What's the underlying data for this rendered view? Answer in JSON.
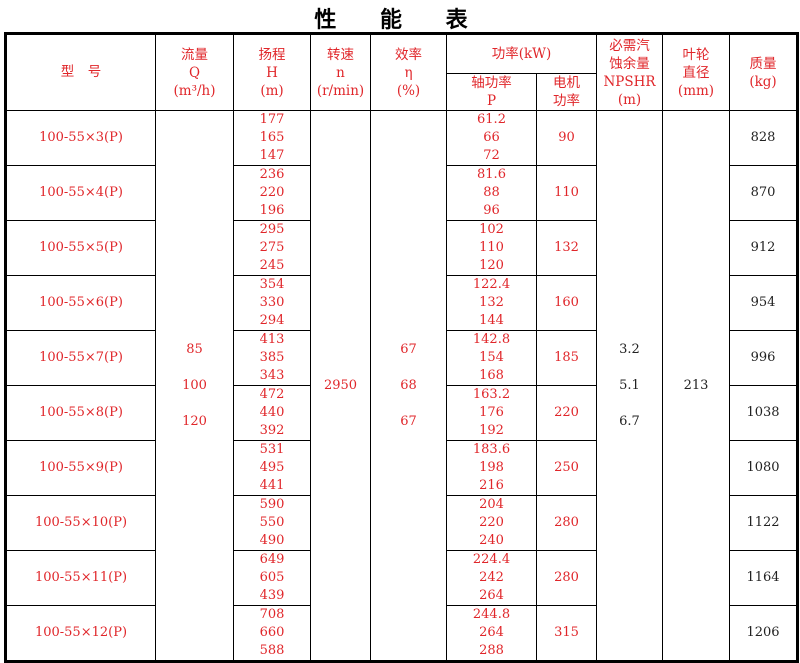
{
  "title": "性 能 表",
  "headers": {
    "model": "型　号",
    "flow": [
      "流量",
      "Q",
      "(m³/h)"
    ],
    "head": [
      "扬程",
      "H",
      "(m)"
    ],
    "speed": [
      "转速",
      "n",
      "(r/min)"
    ],
    "efficiency": [
      "效率",
      "η",
      "(%)"
    ],
    "power": "功率(kW)",
    "shaft_power": [
      "轴功率",
      "P"
    ],
    "motor_power": [
      "电机",
      "功率"
    ],
    "npshr": [
      "必需汽",
      "蚀余量",
      "NPSHR",
      "(m)"
    ],
    "impeller": [
      "叶轮",
      "直径",
      "(mm)"
    ],
    "mass": [
      "质量",
      "(kg)"
    ]
  },
  "shared": {
    "flow": [
      "85",
      "100",
      "120"
    ],
    "speed": "2950",
    "efficiency": [
      "67",
      "68",
      "67"
    ],
    "npshr": [
      "3.2",
      "5.1",
      "6.7"
    ],
    "impeller": "213"
  },
  "rows": [
    {
      "model": "100-55×3(P)",
      "head": [
        "177",
        "165",
        "147"
      ],
      "shaft": [
        "61.2",
        "66",
        "72"
      ],
      "motor": "90",
      "mass": "828"
    },
    {
      "model": "100-55×4(P)",
      "head": [
        "236",
        "220",
        "196"
      ],
      "shaft": [
        "81.6",
        "88",
        "96"
      ],
      "motor": "110",
      "mass": "870"
    },
    {
      "model": "100-55×5(P)",
      "head": [
        "295",
        "275",
        "245"
      ],
      "shaft": [
        "102",
        "110",
        "120"
      ],
      "motor": "132",
      "mass": "912"
    },
    {
      "model": "100-55×6(P)",
      "head": [
        "354",
        "330",
        "294"
      ],
      "shaft": [
        "122.4",
        "132",
        "144"
      ],
      "motor": "160",
      "mass": "954"
    },
    {
      "model": "100-55×7(P)",
      "head": [
        "413",
        "385",
        "343"
      ],
      "shaft": [
        "142.8",
        "154",
        "168"
      ],
      "motor": "185",
      "mass": "996"
    },
    {
      "model": "100-55×8(P)",
      "head": [
        "472",
        "440",
        "392"
      ],
      "shaft": [
        "163.2",
        "176",
        "192"
      ],
      "motor": "220",
      "mass": "1038"
    },
    {
      "model": "100-55×9(P)",
      "head": [
        "531",
        "495",
        "441"
      ],
      "shaft": [
        "183.6",
        "198",
        "216"
      ],
      "motor": "250",
      "mass": "1080"
    },
    {
      "model": "100-55×10(P)",
      "head": [
        "590",
        "550",
        "490"
      ],
      "shaft": [
        "204",
        "220",
        "240"
      ],
      "motor": "280",
      "mass": "1122"
    },
    {
      "model": "100-55×11(P)",
      "head": [
        "649",
        "605",
        "439"
      ],
      "shaft": [
        "224.4",
        "242",
        "264"
      ],
      "motor": "280",
      "mass": "1164"
    },
    {
      "model": "100-55×12(P)",
      "head": [
        "708",
        "660",
        "588"
      ],
      "shaft": [
        "244.8",
        "264",
        "288"
      ],
      "motor": "315",
      "mass": "1206"
    }
  ]
}
